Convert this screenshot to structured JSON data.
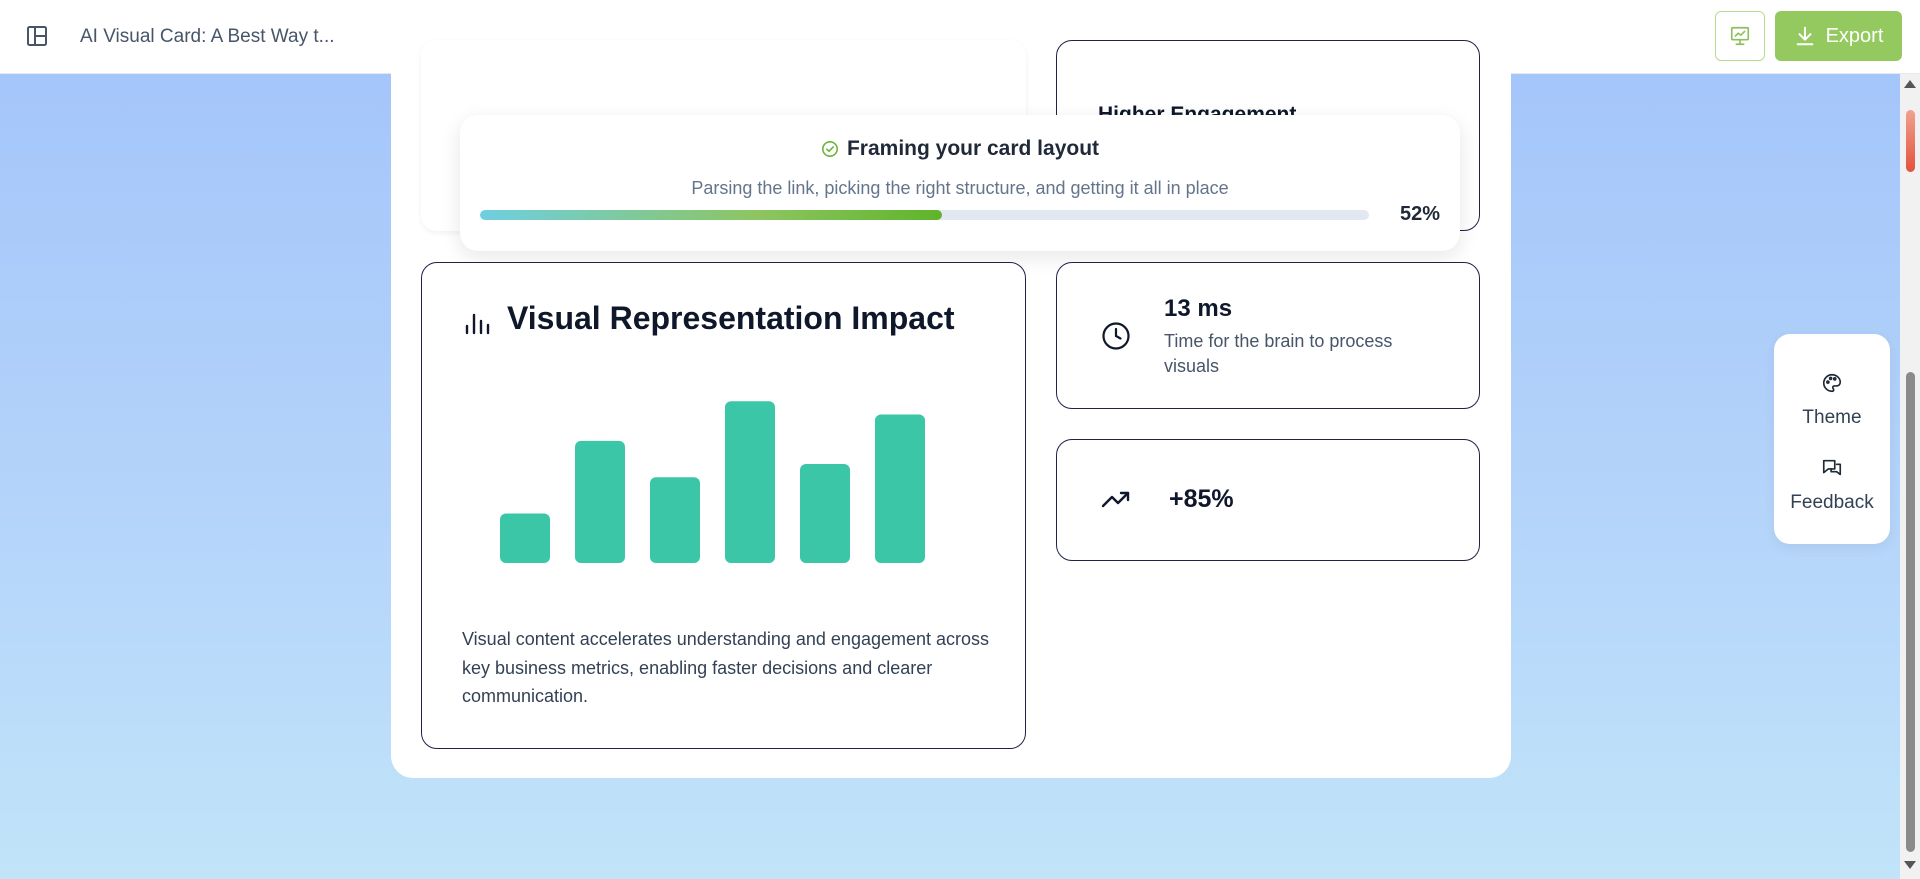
{
  "header": {
    "doc_title": "AI Visual Card: A Best Way t...",
    "export_label": "Export",
    "export_color": "#93c95f"
  },
  "previous_card": {
    "heading": "Higher Engagement"
  },
  "progress": {
    "title": "Framing your card layout",
    "subtitle": "Parsing the link, picking the right structure, and getting it all in place",
    "percent_label": "52%",
    "value": 0.52
  },
  "chart_card": {
    "title": "Visual Representation Impact",
    "description": "Visual content accelerates understanding and engagement across key business metrics, enabling faster decisions and clearer communication.",
    "chart_data": {
      "type": "bar",
      "values": [
        3,
        7.4,
        5.2,
        9.8,
        6,
        9
      ],
      "ylim": [
        0,
        10
      ],
      "bar_color": "#3cc6a8",
      "axes": false,
      "grid": false
    }
  },
  "stats": [
    {
      "icon": "clock-icon",
      "value": "13 ms",
      "label": "Time for the brain to process visuals"
    },
    {
      "icon": "trending-up-icon",
      "value": "+85%"
    }
  ],
  "side_menu": {
    "theme_label": "Theme",
    "feedback_label": "Feedback"
  },
  "colors": {
    "card_border": "#1e2347",
    "background_top": "#a2c3fa",
    "background_bottom": "#c1e4f9",
    "accent_green": "#93c95f"
  }
}
